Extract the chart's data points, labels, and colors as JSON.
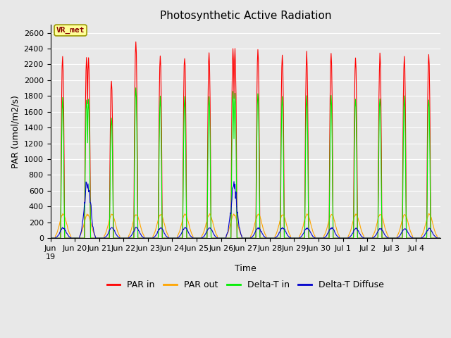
{
  "title": "Photosynthetic Active Radiation",
  "ylabel": "PAR (umol/m2/s)",
  "xlabel": "Time",
  "annotation": "VR_met",
  "ylim": [
    0,
    2700
  ],
  "yticks": [
    0,
    200,
    400,
    600,
    800,
    1000,
    1200,
    1400,
    1600,
    1800,
    2000,
    2200,
    2400,
    2600
  ],
  "colors": {
    "par_in": "#FF0000",
    "par_out": "#FFA500",
    "delta_t_in": "#00EE00",
    "delta_t_diffuse": "#0000CC"
  },
  "fig_bg": "#E8E8E8",
  "plot_bg": "#E8E8E8",
  "legend_labels": [
    "PAR in",
    "PAR out",
    "Delta-T in",
    "Delta-T Diffuse"
  ],
  "title_fontsize": 11,
  "tick_fontsize": 8,
  "axis_label_fontsize": 9,
  "legend_fontsize": 9
}
